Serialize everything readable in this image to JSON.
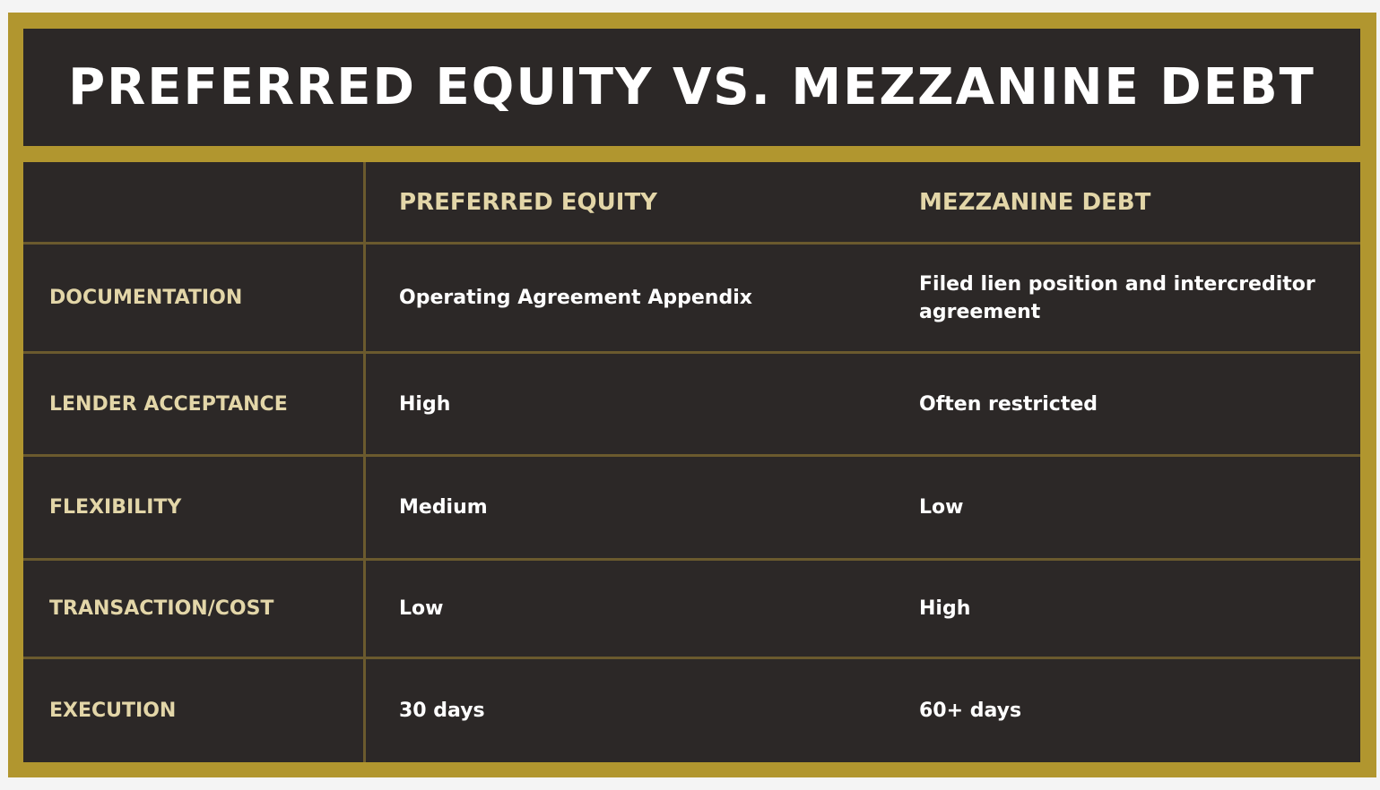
{
  "title": "PREFERRED EQUITY VS. MEZZANINE DEBT",
  "columns": [
    "PREFERRED EQUITY",
    "MEZZANINE DEBT"
  ],
  "rows": [
    {
      "label": "DOCUMENTATION",
      "preferred": "Operating Agreement Appendix",
      "mezzanine": "Filed lien position and intercreditor agreement"
    },
    {
      "label": "LENDER ACCEPTANCE",
      "preferred": "High",
      "mezzanine": "Often restricted"
    },
    {
      "label": "FLEXIBILITY",
      "preferred": "Medium",
      "mezzanine": "Low"
    },
    {
      "label": "TRANSACTION/COST",
      "preferred": "Low",
      "mezzanine": "High"
    },
    {
      "label": "EXECUTION",
      "preferred": "30 days",
      "mezzanine": "60+ days"
    }
  ],
  "colors": {
    "frame": "#b1962f",
    "panel": "#2c2827",
    "header_text": "#e3d6a8",
    "value_text": "#ffffff"
  }
}
